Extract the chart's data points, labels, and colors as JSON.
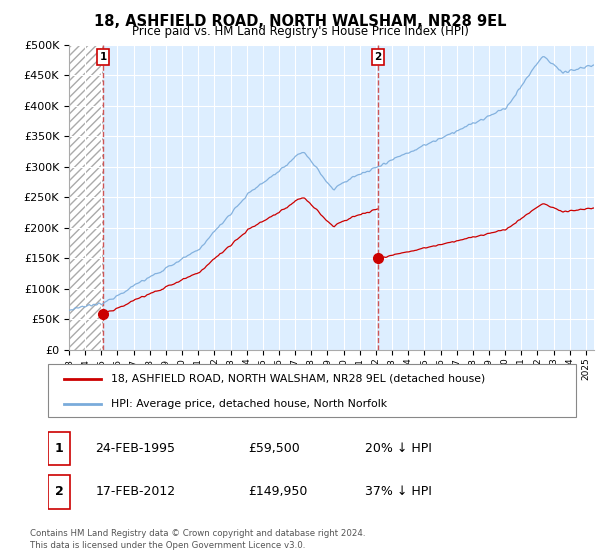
{
  "title": "18, ASHFIELD ROAD, NORTH WALSHAM, NR28 9EL",
  "subtitle": "Price paid vs. HM Land Registry's House Price Index (HPI)",
  "sale1_label": "24-FEB-1995",
  "sale1_year": 1995.12,
  "sale1_price": 59500,
  "sale1_hpi_pct": "20% ↓ HPI",
  "sale2_label": "17-FEB-2012",
  "sale2_year": 2012.12,
  "sale2_price": 149950,
  "sale2_hpi_pct": "37% ↓ HPI",
  "legend1": "18, ASHFIELD ROAD, NORTH WALSHAM, NR28 9EL (detached house)",
  "legend2": "HPI: Average price, detached house, North Norfolk",
  "footer": "Contains HM Land Registry data © Crown copyright and database right 2024.\nThis data is licensed under the Open Government Licence v3.0.",
  "sale_color": "#cc0000",
  "hpi_color": "#7aabdb",
  "dashed_line_color": "#cc4444",
  "plot_bg": "#ddeeff",
  "hatch_bg": "#e8e8e8",
  "ylim": [
    0,
    500000
  ],
  "yticks": [
    0,
    50000,
    100000,
    150000,
    200000,
    250000,
    300000,
    350000,
    400000,
    450000,
    500000
  ],
  "xstart": 1993,
  "xend": 2025
}
